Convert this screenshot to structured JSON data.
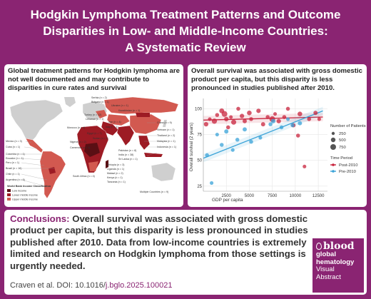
{
  "header": {
    "title_line1": "Hodgkin Lymphoma Treatment Patterns and Outcome",
    "title_line2": "Disparities in Low- and Middle-Income Countries:",
    "title_line3": "A Systematic Review"
  },
  "left_panel": {
    "heading": "Global treatment patterns for Hodgkin lymphoma are not well documented and may contribute to disparities in cure rates and survival",
    "legend_title": "World Bank Income Classification",
    "legend_items": [
      {
        "label": "Low income",
        "color": "#5a0f14"
      },
      {
        "label": "Lower middle income",
        "color": "#9d1b24"
      },
      {
        "label": "Upper middle income",
        "color": "#d25950"
      }
    ],
    "country_labels_left": [
      "Mexico (n = 3)",
      "Cuba (n = 1)",
      "Colombia (n = 1)",
      "Ecuador (n = 1)",
      "Peru (n = 1)",
      "Brazil (n = 16)",
      "Chile (n = 1)",
      "Argentina (n = 6)"
    ],
    "country_labels_top": [
      "Serbia (n = 2)",
      "Bulgaria (n = 1)",
      "Ukraine (n = 1)",
      "Kazakhstan (n = 1)",
      "Turkey (n = 12)",
      "Lebanon (n = 1)",
      "Iran (n = 4)",
      "Morocco (n = 4)",
      "Iraq (n = 1)",
      "Egypt (n = 7)",
      "Sudan (n = 2)",
      "Nigeria (n = 2)",
      "Cameroon (n = 1)"
    ],
    "country_labels_right": [
      "China (n = 9)",
      "Vietnam (n = 1)",
      "Thailand (n = 2)",
      "Malaysia (n = 1)",
      "Indonesia (n = 1)",
      "Pakistan (n = 8)",
      "India (n = 38)",
      "Sri Lanka (n = 1)",
      "Multiple Countries (n = 9)"
    ],
    "country_labels_bottom": [
      "Ethiopia (n = 3)",
      "Uganda (n = 1)",
      "Malawi (n = 2)",
      "South Africa (n = 4)",
      "Kenya (n = 1)",
      "Tanzania (n = 1)"
    ]
  },
  "right_panel": {
    "heading": "Overall survival was associated with gross domestic product per capita, but this disparity is less pronounced in studies published after 2010.",
    "legend_size_title": "Number of Patients",
    "legend_sizes": [
      250,
      500,
      750
    ],
    "legend_period_title": "Time Period",
    "legend_periods": [
      {
        "label": "Post-2010",
        "color": "#c8233c"
      },
      {
        "label": "Pre-2010",
        "color": "#3aa3d8"
      }
    ]
  },
  "chart_data": {
    "type": "scatter",
    "title": "",
    "xlabel": "GDP per capita",
    "ylabel": "Overall survival (2 years)",
    "x_ticks": [
      2500,
      5000,
      7500,
      10000,
      12500
    ],
    "y_ticks": [
      25,
      50,
      75,
      100
    ],
    "xlim": [
      0,
      13500
    ],
    "ylim": [
      20,
      110
    ],
    "grid": true,
    "legend": "right",
    "series": [
      {
        "name": "Post-2010",
        "color": "#c8233c",
        "trend": [
          [
            0,
            89
          ],
          [
            13000,
            92
          ]
        ],
        "points": [
          [
            300,
            85,
            300
          ],
          [
            700,
            90,
            150
          ],
          [
            1200,
            88,
            500
          ],
          [
            1500,
            94,
            200
          ],
          [
            2000,
            98,
            400
          ],
          [
            2300,
            95,
            650
          ],
          [
            2500,
            90,
            300
          ],
          [
            2700,
            82,
            200
          ],
          [
            3000,
            92,
            150
          ],
          [
            3300,
            87,
            450
          ],
          [
            3800,
            100,
            200
          ],
          [
            4200,
            93,
            300
          ],
          [
            4500,
            88,
            250
          ],
          [
            5000,
            96,
            350
          ],
          [
            5200,
            90,
            200
          ],
          [
            6000,
            98,
            300
          ],
          [
            6500,
            85,
            250
          ],
          [
            7000,
            92,
            200
          ],
          [
            7500,
            90,
            650
          ],
          [
            7800,
            95,
            150
          ],
          [
            8200,
            88,
            300
          ],
          [
            8800,
            92,
            200
          ],
          [
            9200,
            100,
            200
          ],
          [
            9800,
            84,
            250
          ],
          [
            10300,
            74,
            200
          ],
          [
            10500,
            95,
            350
          ],
          [
            11000,
            44,
            150
          ],
          [
            11500,
            90,
            200
          ],
          [
            12200,
            96,
            250
          ],
          [
            12600,
            90,
            150
          ]
        ]
      },
      {
        "name": "Pre-2010",
        "color": "#3aa3d8",
        "trend": [
          [
            0,
            52
          ],
          [
            13000,
            98
          ]
        ],
        "points": [
          [
            400,
            55,
            200
          ],
          [
            900,
            28,
            150
          ],
          [
            1500,
            75,
            150
          ],
          [
            2000,
            65,
            200
          ],
          [
            2500,
            78,
            250
          ],
          [
            3200,
            60,
            150
          ],
          [
            3700,
            70,
            200
          ],
          [
            4500,
            80,
            250
          ],
          [
            5200,
            68,
            200
          ],
          [
            6200,
            72,
            150
          ],
          [
            7300,
            85,
            200
          ],
          [
            7600,
            88,
            300
          ],
          [
            8500,
            82,
            200
          ],
          [
            9200,
            90,
            150
          ],
          [
            9700,
            84,
            200
          ],
          [
            10500,
            86,
            250
          ]
        ]
      }
    ]
  },
  "conclusions": {
    "lead": "Conclusions:",
    "text": "Overall survival was associated with gross domestic product per capita, but this disparity is less pronounced in studies published after 2010. Data from low-income countries is extremely limited and research on Hodgkin lymphoma from those settings is urgently needed."
  },
  "citation": {
    "prefix": "Craven et al. DOI: 10.1016/",
    "doi_highlight": "j.bglo.2025.100021"
  },
  "logo": {
    "line1": "blood",
    "line2": "global",
    "line3": "hematology",
    "line4": "Visual",
    "line5": "Abstract"
  }
}
